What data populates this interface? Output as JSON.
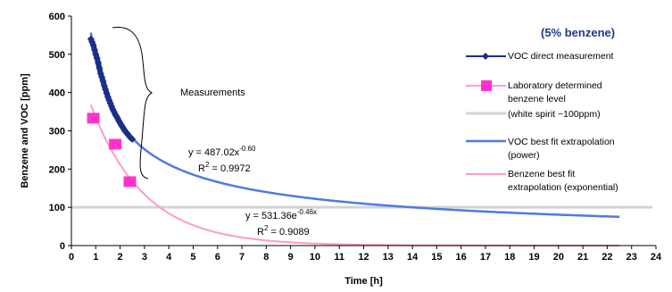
{
  "chart_data": {
    "type": "scatter",
    "title": "(5% benzene)",
    "xlabel": "Time [h]",
    "ylabel": "Benzene and VOC [ppm]",
    "xlim": [
      0,
      24
    ],
    "ylim": [
      0,
      600
    ],
    "x_ticks": [
      "0",
      "1",
      "2",
      "3",
      "4",
      "5",
      "6",
      "7",
      "8",
      "9",
      "10",
      "11",
      "12",
      "13",
      "14",
      "15",
      "16",
      "17",
      "18",
      "19",
      "20",
      "21",
      "22",
      "23",
      "24"
    ],
    "y_ticks": [
      "0",
      "100",
      "200",
      "300",
      "400",
      "500",
      "600"
    ],
    "grid": false,
    "legend_position": "right",
    "series": [
      {
        "name": "VOC direct measurement",
        "kind": "line-markers",
        "color": "#1a2f8a",
        "x": [
          0.8,
          0.85,
          0.9,
          0.95,
          1.0,
          1.05,
          1.1,
          1.15,
          1.2,
          1.25,
          1.3,
          1.35,
          1.4,
          1.45,
          1.5,
          1.55,
          1.6,
          1.65,
          1.7,
          1.75,
          1.8,
          1.85,
          1.9,
          1.95,
          2.0,
          2.05,
          2.1,
          2.15,
          2.2,
          2.25,
          2.3,
          2.35,
          2.4,
          2.45,
          2.5
        ],
        "y": [
          540,
          532,
          524,
          512,
          500,
          490,
          478,
          464,
          450,
          440,
          430,
          418,
          408,
          398,
          388,
          380,
          372,
          364,
          356,
          350,
          343,
          338,
          332,
          326,
          320,
          315,
          310,
          305,
          300,
          296,
          292,
          288,
          284,
          281,
          278
        ]
      },
      {
        "name": "Laboratory determined benzene level",
        "kind": "markers",
        "color": "#ff33cc",
        "x": [
          0.9,
          1.8,
          2.4
        ],
        "y": [
          333,
          265,
          167
        ]
      },
      {
        "name": "(white spirit ~100ppm)",
        "kind": "hline",
        "color": "#d3d3d3",
        "y": 100
      },
      {
        "name": "VOC best fit extrapolation (power)",
        "kind": "fit-power",
        "color": "#4f7be0",
        "a": 487.02,
        "b": -0.6,
        "x_range": [
          0.8,
          22.5
        ]
      },
      {
        "name": "Benzene best fit extrapolation (exponential)",
        "kind": "fit-exponential",
        "color": "#ff99cc",
        "a": 531.36,
        "b": -0.46,
        "x_range": [
          0.8,
          22.5
        ]
      }
    ],
    "annotations": {
      "measurements": "Measurements",
      "power_eq_main": "y = 487.02x",
      "power_eq_exp": "-0.60",
      "power_r2_main": "R",
      "power_r2_sup": "2",
      "power_r2_val": " = 0.9972",
      "exp_eq_main": "y = 531.36e",
      "exp_eq_exp": "-0.46x",
      "exp_r2_main": "R",
      "exp_r2_sup": "2",
      "exp_r2_val": " = 0.9089"
    },
    "legend": {
      "voc_direct": "VOC direct measurement",
      "lab_line1": "Laboratory determined",
      "lab_line2": "benzene level",
      "white_spirit": "(white spirit ~100ppm)",
      "voc_fit_line1": "VOC best fit extrapolation",
      "voc_fit_line2": "(power)",
      "benz_fit_line1": "Benzene best fit",
      "benz_fit_line2": "extrapolation (exponential)"
    }
  }
}
